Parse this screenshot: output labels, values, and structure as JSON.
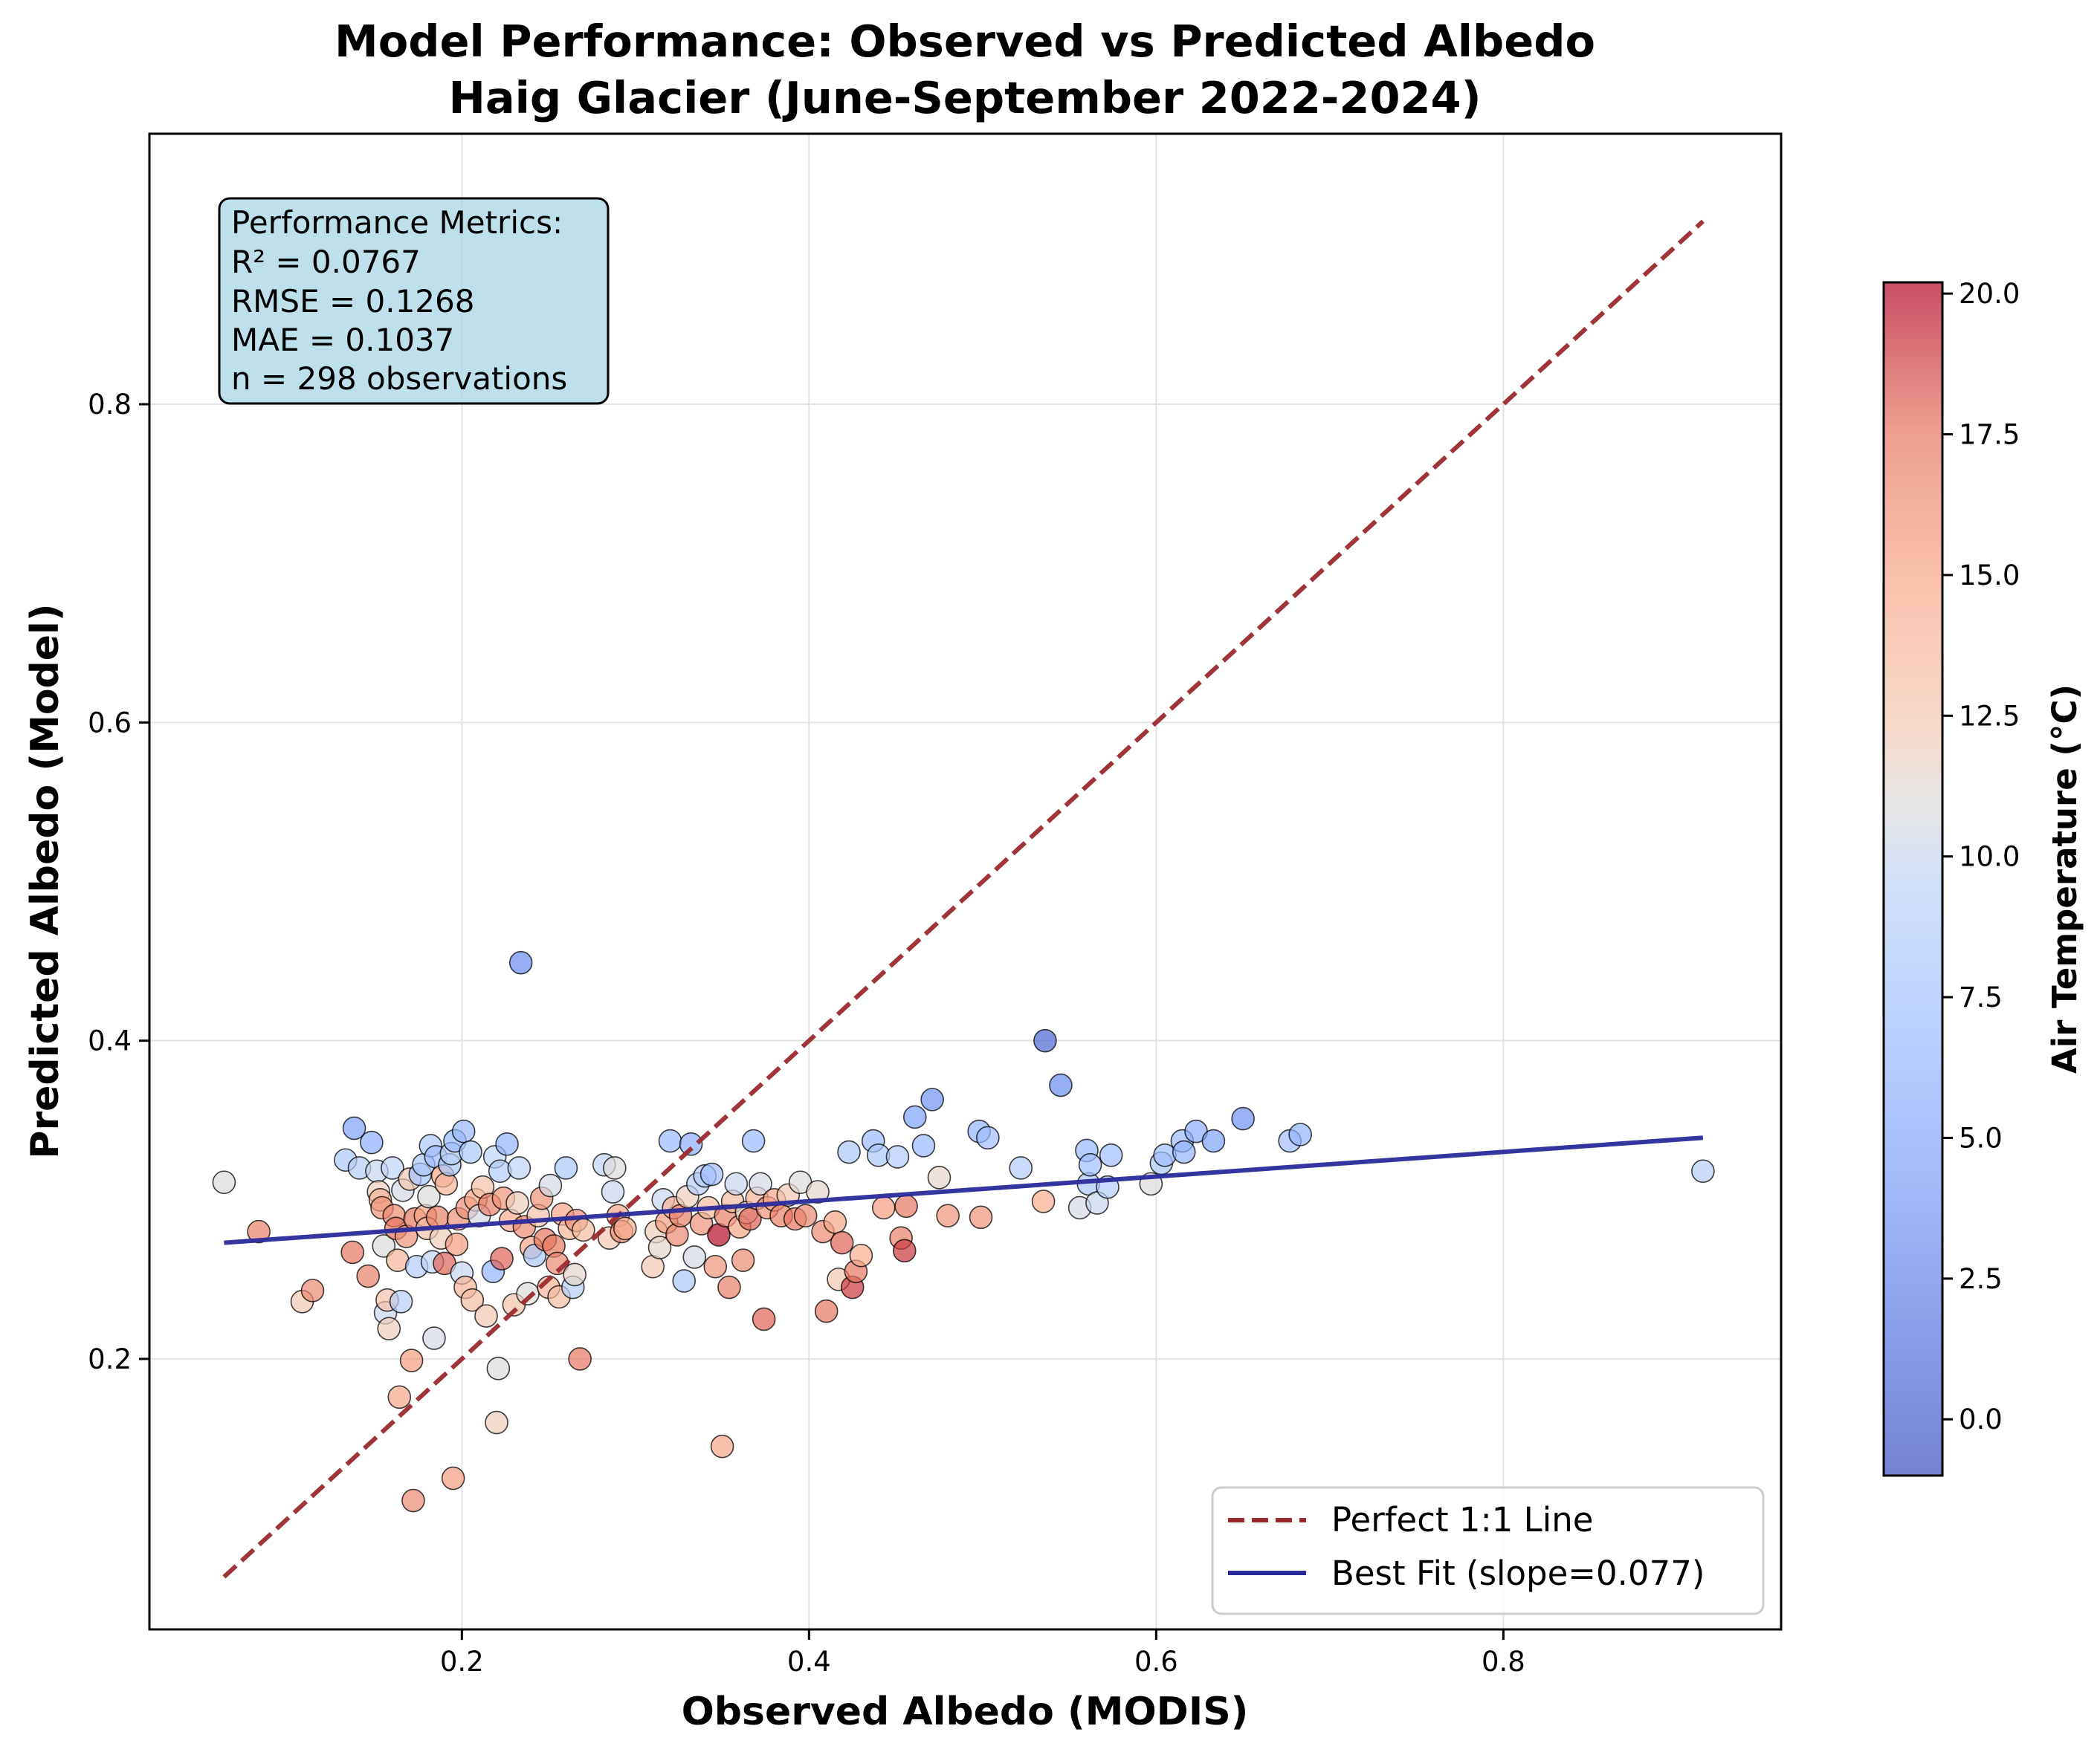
{
  "chart_data": {
    "type": "scatter",
    "title": "Model Performance: Observed vs Predicted Albedo",
    "subtitle": "Haig Glacier (June-September 2022-2024)",
    "xlabel": "Observed Albedo (MODIS)",
    "ylabel": "Predicted Albedo (Model)",
    "xlim": [
      0.02,
      0.96
    ],
    "ylim": [
      0.03,
      0.97
    ],
    "x_ticks": [
      0.2,
      0.4,
      0.6,
      0.8
    ],
    "y_ticks": [
      0.2,
      0.4,
      0.6,
      0.8
    ],
    "x_tick_labels": [
      "0.2",
      "0.4",
      "0.6",
      "0.8"
    ],
    "y_tick_labels": [
      "0.2",
      "0.4",
      "0.6",
      "0.8"
    ],
    "grid": true,
    "legend_position": "lower-right",
    "colormap": "coolwarm",
    "colorbar": {
      "label": "Air Temperature (°C)",
      "min": -1.0,
      "max": 20.2,
      "ticks": [
        0.0,
        2.5,
        5.0,
        7.5,
        10.0,
        12.5,
        15.0,
        17.5,
        20.0
      ],
      "tick_labels": [
        "0.0",
        "2.5",
        "5.0",
        "7.5",
        "10.0",
        "12.5",
        "15.0",
        "17.5",
        "20.0"
      ]
    },
    "metrics_box": {
      "header": "Performance Metrics:",
      "r2": "R² = 0.0767",
      "rmse": "RMSE = 0.1268",
      "mae": "MAE = 0.1037",
      "n": "n = 298 observations"
    },
    "lines": [
      {
        "name": "Perfect 1:1 Line",
        "style": "dashed",
        "color": "#9b2a2e",
        "x": [
          0.063,
          0.915
        ],
        "y": [
          0.063,
          0.915
        ]
      },
      {
        "name": "Best Fit (slope=0.077)",
        "style": "solid",
        "color": "#2a2a9a",
        "x": [
          0.063,
          0.915
        ],
        "y": [
          0.273,
          0.339
        ]
      }
    ],
    "points": [
      {
        "x": 0.063,
        "y": 0.311,
        "t": 11.0
      },
      {
        "x": 0.083,
        "y": 0.28,
        "t": 17.0
      },
      {
        "x": 0.108,
        "y": 0.236,
        "t": 12.5
      },
      {
        "x": 0.114,
        "y": 0.243,
        "t": 16.5
      },
      {
        "x": 0.133,
        "y": 0.325,
        "t": 8.0
      },
      {
        "x": 0.137,
        "y": 0.267,
        "t": 17.5
      },
      {
        "x": 0.138,
        "y": 0.345,
        "t": 4.5
      },
      {
        "x": 0.141,
        "y": 0.32,
        "t": 9.0
      },
      {
        "x": 0.146,
        "y": 0.252,
        "t": 17.0
      },
      {
        "x": 0.148,
        "y": 0.336,
        "t": 5.5
      },
      {
        "x": 0.151,
        "y": 0.318,
        "t": 10.0
      },
      {
        "x": 0.152,
        "y": 0.305,
        "t": 12.0
      },
      {
        "x": 0.153,
        "y": 0.3,
        "t": 14.0
      },
      {
        "x": 0.154,
        "y": 0.295,
        "t": 16.0
      },
      {
        "x": 0.155,
        "y": 0.271,
        "t": 11.0
      },
      {
        "x": 0.156,
        "y": 0.229,
        "t": 10.0
      },
      {
        "x": 0.157,
        "y": 0.237,
        "t": 13.0
      },
      {
        "x": 0.158,
        "y": 0.219,
        "t": 12.0
      },
      {
        "x": 0.16,
        "y": 0.32,
        "t": 9.5
      },
      {
        "x": 0.161,
        "y": 0.29,
        "t": 16.5
      },
      {
        "x": 0.162,
        "y": 0.282,
        "t": 17.5
      },
      {
        "x": 0.163,
        "y": 0.262,
        "t": 14.0
      },
      {
        "x": 0.164,
        "y": 0.176,
        "t": 15.0
      },
      {
        "x": 0.165,
        "y": 0.236,
        "t": 9.0
      },
      {
        "x": 0.166,
        "y": 0.306,
        "t": 10.5
      },
      {
        "x": 0.168,
        "y": 0.277,
        "t": 16.0
      },
      {
        "x": 0.17,
        "y": 0.313,
        "t": 12.5
      },
      {
        "x": 0.171,
        "y": 0.199,
        "t": 15.5
      },
      {
        "x": 0.172,
        "y": 0.111,
        "t": 16.5
      },
      {
        "x": 0.173,
        "y": 0.288,
        "t": 17.5
      },
      {
        "x": 0.174,
        "y": 0.258,
        "t": 8.5
      },
      {
        "x": 0.176,
        "y": 0.316,
        "t": 7.5
      },
      {
        "x": 0.178,
        "y": 0.322,
        "t": 8.0
      },
      {
        "x": 0.179,
        "y": 0.29,
        "t": 15.0
      },
      {
        "x": 0.18,
        "y": 0.282,
        "t": 13.0
      },
      {
        "x": 0.181,
        "y": 0.302,
        "t": 11.0
      },
      {
        "x": 0.182,
        "y": 0.334,
        "t": 8.0
      },
      {
        "x": 0.183,
        "y": 0.261,
        "t": 9.5
      },
      {
        "x": 0.184,
        "y": 0.213,
        "t": 10.5
      },
      {
        "x": 0.185,
        "y": 0.327,
        "t": 7.0
      },
      {
        "x": 0.186,
        "y": 0.289,
        "t": 17.0
      },
      {
        "x": 0.188,
        "y": 0.276,
        "t": 12.0
      },
      {
        "x": 0.189,
        "y": 0.315,
        "t": 15.0
      },
      {
        "x": 0.19,
        "y": 0.26,
        "t": 18.0
      },
      {
        "x": 0.191,
        "y": 0.31,
        "t": 14.0
      },
      {
        "x": 0.193,
        "y": 0.322,
        "t": 8.0
      },
      {
        "x": 0.194,
        "y": 0.329,
        "t": 9.0
      },
      {
        "x": 0.195,
        "y": 0.125,
        "t": 15.5
      },
      {
        "x": 0.196,
        "y": 0.337,
        "t": 6.5
      },
      {
        "x": 0.197,
        "y": 0.272,
        "t": 15.5
      },
      {
        "x": 0.198,
        "y": 0.288,
        "t": 16.0
      },
      {
        "x": 0.2,
        "y": 0.254,
        "t": 10.0
      },
      {
        "x": 0.201,
        "y": 0.343,
        "t": 6.5
      },
      {
        "x": 0.202,
        "y": 0.245,
        "t": 14.0
      },
      {
        "x": 0.203,
        "y": 0.295,
        "t": 16.0
      },
      {
        "x": 0.205,
        "y": 0.33,
        "t": 8.0
      },
      {
        "x": 0.206,
        "y": 0.237,
        "t": 13.5
      },
      {
        "x": 0.208,
        "y": 0.3,
        "t": 15.0
      },
      {
        "x": 0.21,
        "y": 0.29,
        "t": 10.5
      },
      {
        "x": 0.212,
        "y": 0.308,
        "t": 13.0
      },
      {
        "x": 0.214,
        "y": 0.227,
        "t": 12.5
      },
      {
        "x": 0.216,
        "y": 0.297,
        "t": 17.0
      },
      {
        "x": 0.218,
        "y": 0.255,
        "t": 6.0
      },
      {
        "x": 0.219,
        "y": 0.327,
        "t": 9.5
      },
      {
        "x": 0.22,
        "y": 0.16,
        "t": 12.0
      },
      {
        "x": 0.221,
        "y": 0.194,
        "t": 11.0
      },
      {
        "x": 0.222,
        "y": 0.318,
        "t": 8.5
      },
      {
        "x": 0.223,
        "y": 0.263,
        "t": 18.0
      },
      {
        "x": 0.224,
        "y": 0.301,
        "t": 16.0
      },
      {
        "x": 0.226,
        "y": 0.335,
        "t": 6.0
      },
      {
        "x": 0.228,
        "y": 0.287,
        "t": 14.5
      },
      {
        "x": 0.23,
        "y": 0.234,
        "t": 13.0
      },
      {
        "x": 0.232,
        "y": 0.298,
        "t": 12.0
      },
      {
        "x": 0.233,
        "y": 0.32,
        "t": 9.5
      },
      {
        "x": 0.234,
        "y": 0.449,
        "t": 3.0
      },
      {
        "x": 0.236,
        "y": 0.283,
        "t": 16.5
      },
      {
        "x": 0.238,
        "y": 0.241,
        "t": 11.0
      },
      {
        "x": 0.24,
        "y": 0.27,
        "t": 15.0
      },
      {
        "x": 0.242,
        "y": 0.265,
        "t": 8.0
      },
      {
        "x": 0.244,
        "y": 0.29,
        "t": 13.0
      },
      {
        "x": 0.246,
        "y": 0.301,
        "t": 16.0
      },
      {
        "x": 0.248,
        "y": 0.275,
        "t": 17.5
      },
      {
        "x": 0.25,
        "y": 0.245,
        "t": 14.0
      },
      {
        "x": 0.251,
        "y": 0.309,
        "t": 10.5
      },
      {
        "x": 0.253,
        "y": 0.271,
        "t": 17.5
      },
      {
        "x": 0.255,
        "y": 0.26,
        "t": 16.5
      },
      {
        "x": 0.256,
        "y": 0.239,
        "t": 13.5
      },
      {
        "x": 0.258,
        "y": 0.291,
        "t": 15.0
      },
      {
        "x": 0.26,
        "y": 0.32,
        "t": 8.0
      },
      {
        "x": 0.262,
        "y": 0.282,
        "t": 14.0
      },
      {
        "x": 0.264,
        "y": 0.245,
        "t": 9.0
      },
      {
        "x": 0.265,
        "y": 0.253,
        "t": 11.5
      },
      {
        "x": 0.266,
        "y": 0.287,
        "t": 16.0
      },
      {
        "x": 0.268,
        "y": 0.2,
        "t": 17.5
      },
      {
        "x": 0.27,
        "y": 0.281,
        "t": 13.5
      },
      {
        "x": 0.282,
        "y": 0.322,
        "t": 9.5
      },
      {
        "x": 0.285,
        "y": 0.276,
        "t": 12.5
      },
      {
        "x": 0.287,
        "y": 0.305,
        "t": 10.0
      },
      {
        "x": 0.288,
        "y": 0.32,
        "t": 11.0
      },
      {
        "x": 0.29,
        "y": 0.29,
        "t": 15.0
      },
      {
        "x": 0.292,
        "y": 0.28,
        "t": 16.5
      },
      {
        "x": 0.294,
        "y": 0.282,
        "t": 14.5
      },
      {
        "x": 0.31,
        "y": 0.258,
        "t": 12.5
      },
      {
        "x": 0.312,
        "y": 0.28,
        "t": 12.0
      },
      {
        "x": 0.314,
        "y": 0.27,
        "t": 11.5
      },
      {
        "x": 0.316,
        "y": 0.3,
        "t": 10.0
      },
      {
        "x": 0.318,
        "y": 0.286,
        "t": 15.5
      },
      {
        "x": 0.32,
        "y": 0.337,
        "t": 6.5
      },
      {
        "x": 0.322,
        "y": 0.295,
        "t": 14.0
      },
      {
        "x": 0.324,
        "y": 0.278,
        "t": 16.5
      },
      {
        "x": 0.326,
        "y": 0.29,
        "t": 17.0
      },
      {
        "x": 0.328,
        "y": 0.249,
        "t": 8.0
      },
      {
        "x": 0.33,
        "y": 0.302,
        "t": 12.0
      },
      {
        "x": 0.332,
        "y": 0.335,
        "t": 5.5
      },
      {
        "x": 0.334,
        "y": 0.264,
        "t": 10.5
      },
      {
        "x": 0.336,
        "y": 0.31,
        "t": 9.0
      },
      {
        "x": 0.338,
        "y": 0.285,
        "t": 16.0
      },
      {
        "x": 0.34,
        "y": 0.315,
        "t": 8.5
      },
      {
        "x": 0.342,
        "y": 0.295,
        "t": 13.5
      },
      {
        "x": 0.344,
        "y": 0.316,
        "t": 7.0
      },
      {
        "x": 0.346,
        "y": 0.258,
        "t": 16.0
      },
      {
        "x": 0.348,
        "y": 0.278,
        "t": 20.0
      },
      {
        "x": 0.35,
        "y": 0.145,
        "t": 15.0
      },
      {
        "x": 0.352,
        "y": 0.29,
        "t": 17.0
      },
      {
        "x": 0.354,
        "y": 0.245,
        "t": 17.0
      },
      {
        "x": 0.356,
        "y": 0.299,
        "t": 13.5
      },
      {
        "x": 0.358,
        "y": 0.31,
        "t": 10.0
      },
      {
        "x": 0.36,
        "y": 0.283,
        "t": 15.0
      },
      {
        "x": 0.362,
        "y": 0.262,
        "t": 16.5
      },
      {
        "x": 0.364,
        "y": 0.292,
        "t": 12.0
      },
      {
        "x": 0.366,
        "y": 0.288,
        "t": 18.0
      },
      {
        "x": 0.368,
        "y": 0.337,
        "t": 6.5
      },
      {
        "x": 0.37,
        "y": 0.301,
        "t": 14.0
      },
      {
        "x": 0.372,
        "y": 0.31,
        "t": 10.5
      },
      {
        "x": 0.374,
        "y": 0.225,
        "t": 18.0
      },
      {
        "x": 0.376,
        "y": 0.295,
        "t": 16.0
      },
      {
        "x": 0.38,
        "y": 0.3,
        "t": 15.0
      },
      {
        "x": 0.384,
        "y": 0.29,
        "t": 17.0
      },
      {
        "x": 0.388,
        "y": 0.303,
        "t": 12.5
      },
      {
        "x": 0.392,
        "y": 0.288,
        "t": 17.5
      },
      {
        "x": 0.395,
        "y": 0.311,
        "t": 11.0
      },
      {
        "x": 0.398,
        "y": 0.29,
        "t": 16.5
      },
      {
        "x": 0.405,
        "y": 0.305,
        "t": 11.5
      },
      {
        "x": 0.408,
        "y": 0.28,
        "t": 16.5
      },
      {
        "x": 0.41,
        "y": 0.23,
        "t": 17.5
      },
      {
        "x": 0.415,
        "y": 0.286,
        "t": 15.0
      },
      {
        "x": 0.417,
        "y": 0.25,
        "t": 12.5
      },
      {
        "x": 0.419,
        "y": 0.273,
        "t": 18.0
      },
      {
        "x": 0.423,
        "y": 0.33,
        "t": 8.0
      },
      {
        "x": 0.425,
        "y": 0.245,
        "t": 19.0
      },
      {
        "x": 0.427,
        "y": 0.255,
        "t": 17.5
      },
      {
        "x": 0.43,
        "y": 0.265,
        "t": 14.5
      },
      {
        "x": 0.437,
        "y": 0.337,
        "t": 6.5
      },
      {
        "x": 0.44,
        "y": 0.328,
        "t": 8.0
      },
      {
        "x": 0.443,
        "y": 0.295,
        "t": 15.5
      },
      {
        "x": 0.451,
        "y": 0.327,
        "t": 8.5
      },
      {
        "x": 0.453,
        "y": 0.276,
        "t": 17.0
      },
      {
        "x": 0.455,
        "y": 0.268,
        "t": 19.0
      },
      {
        "x": 0.456,
        "y": 0.296,
        "t": 17.5
      },
      {
        "x": 0.461,
        "y": 0.352,
        "t": 4.5
      },
      {
        "x": 0.466,
        "y": 0.334,
        "t": 6.5
      },
      {
        "x": 0.471,
        "y": 0.363,
        "t": 3.5
      },
      {
        "x": 0.475,
        "y": 0.314,
        "t": 11.5
      },
      {
        "x": 0.48,
        "y": 0.29,
        "t": 16.0
      },
      {
        "x": 0.498,
        "y": 0.343,
        "t": 6.0
      },
      {
        "x": 0.499,
        "y": 0.289,
        "t": 16.0
      },
      {
        "x": 0.503,
        "y": 0.339,
        "t": 7.0
      },
      {
        "x": 0.522,
        "y": 0.32,
        "t": 8.5
      },
      {
        "x": 0.535,
        "y": 0.299,
        "t": 14.5
      },
      {
        "x": 0.536,
        "y": 0.4,
        "t": 0.5
      },
      {
        "x": 0.545,
        "y": 0.372,
        "t": 3.0
      },
      {
        "x": 0.556,
        "y": 0.295,
        "t": 10.5
      },
      {
        "x": 0.56,
        "y": 0.331,
        "t": 6.5
      },
      {
        "x": 0.561,
        "y": 0.31,
        "t": 8.0
      },
      {
        "x": 0.562,
        "y": 0.322,
        "t": 7.0
      },
      {
        "x": 0.566,
        "y": 0.298,
        "t": 10.0
      },
      {
        "x": 0.572,
        "y": 0.308,
        "t": 8.5
      },
      {
        "x": 0.574,
        "y": 0.328,
        "t": 7.0
      },
      {
        "x": 0.597,
        "y": 0.31,
        "t": 11.0
      },
      {
        "x": 0.603,
        "y": 0.323,
        "t": 8.0
      },
      {
        "x": 0.605,
        "y": 0.328,
        "t": 7.0
      },
      {
        "x": 0.615,
        "y": 0.337,
        "t": 6.5
      },
      {
        "x": 0.616,
        "y": 0.33,
        "t": 6.0
      },
      {
        "x": 0.623,
        "y": 0.343,
        "t": 5.5
      },
      {
        "x": 0.633,
        "y": 0.337,
        "t": 4.5
      },
      {
        "x": 0.65,
        "y": 0.351,
        "t": 3.5
      },
      {
        "x": 0.677,
        "y": 0.337,
        "t": 7.0
      },
      {
        "x": 0.683,
        "y": 0.341,
        "t": 6.0
      },
      {
        "x": 0.915,
        "y": 0.318,
        "t": 9.0
      }
    ]
  }
}
